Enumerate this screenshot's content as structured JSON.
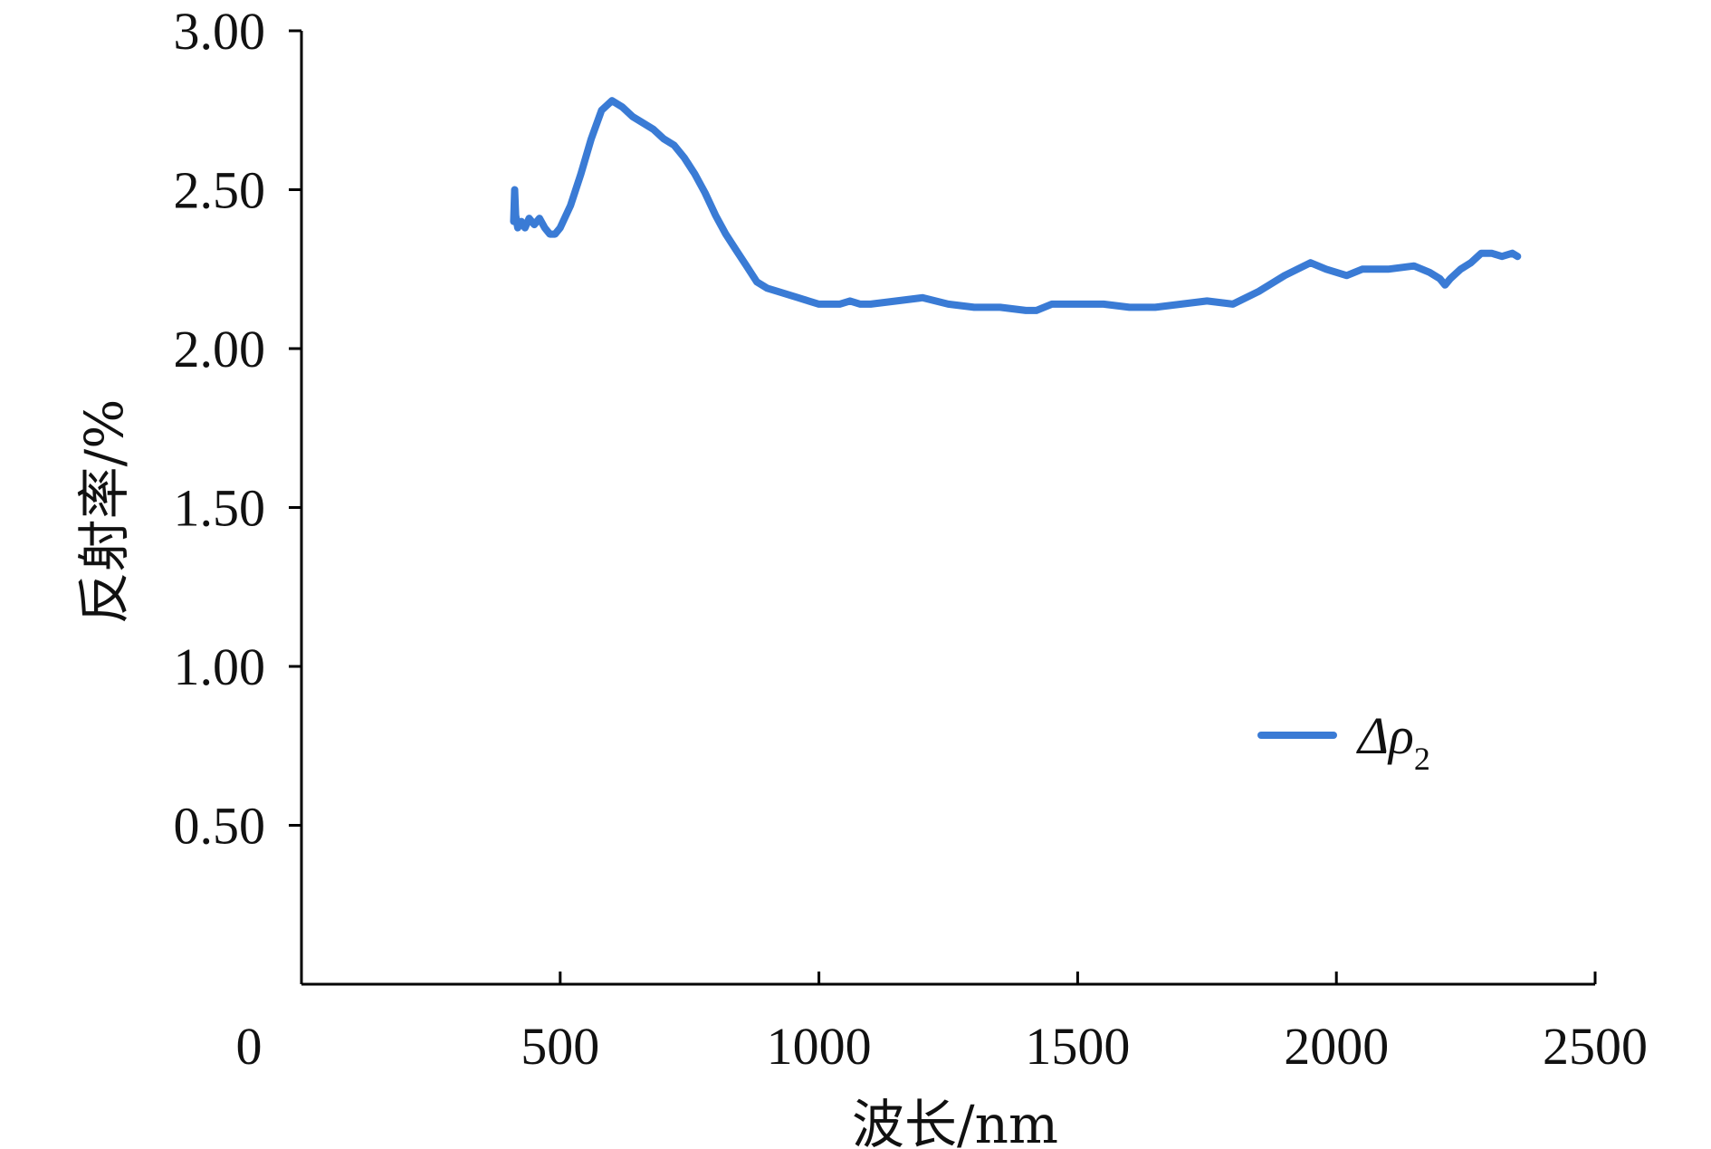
{
  "chart_data": {
    "type": "line",
    "title": "",
    "xlabel": "波长/nm",
    "ylabel": "反射率/%",
    "xlim": [
      0,
      2500
    ],
    "ylim": [
      0,
      3.0
    ],
    "x_ticks": [
      "0",
      "500",
      "1000",
      "1500",
      "2000",
      "2500"
    ],
    "y_ticks": [
      "0.50",
      "1.00",
      "1.50",
      "2.00",
      "2.50",
      "3.00"
    ],
    "grid": false,
    "legend_position": "right-middle",
    "series_color": "#3a7bd5",
    "legend": {
      "symbol": "Δρ",
      "subscript": "2"
    },
    "series": [
      {
        "name": "Δρ2",
        "x": [
          410,
          412,
          414,
          418,
          425,
          432,
          440,
          450,
          460,
          470,
          480,
          490,
          500,
          520,
          540,
          560,
          580,
          600,
          620,
          640,
          660,
          680,
          700,
          720,
          740,
          760,
          780,
          800,
          820,
          840,
          860,
          880,
          900,
          920,
          940,
          960,
          980,
          1000,
          1020,
          1040,
          1060,
          1080,
          1100,
          1150,
          1200,
          1250,
          1300,
          1350,
          1400,
          1420,
          1450,
          1500,
          1550,
          1600,
          1650,
          1700,
          1750,
          1800,
          1850,
          1900,
          1950,
          1980,
          2000,
          2020,
          2050,
          2100,
          2150,
          2180,
          2200,
          2210,
          2220,
          2240,
          2260,
          2280,
          2300,
          2320,
          2340,
          2350
        ],
        "y": [
          2.4,
          2.5,
          2.42,
          2.38,
          2.4,
          2.38,
          2.41,
          2.39,
          2.41,
          2.38,
          2.36,
          2.36,
          2.38,
          2.45,
          2.55,
          2.66,
          2.75,
          2.78,
          2.76,
          2.73,
          2.71,
          2.69,
          2.66,
          2.64,
          2.6,
          2.55,
          2.49,
          2.42,
          2.36,
          2.31,
          2.26,
          2.21,
          2.19,
          2.18,
          2.17,
          2.16,
          2.15,
          2.14,
          2.14,
          2.14,
          2.15,
          2.14,
          2.14,
          2.15,
          2.16,
          2.14,
          2.13,
          2.13,
          2.12,
          2.12,
          2.14,
          2.14,
          2.14,
          2.13,
          2.13,
          2.14,
          2.15,
          2.14,
          2.18,
          2.23,
          2.27,
          2.25,
          2.24,
          2.23,
          2.25,
          2.25,
          2.26,
          2.24,
          2.22,
          2.2,
          2.22,
          2.25,
          2.27,
          2.3,
          2.3,
          2.29,
          2.3,
          2.29
        ]
      }
    ]
  }
}
